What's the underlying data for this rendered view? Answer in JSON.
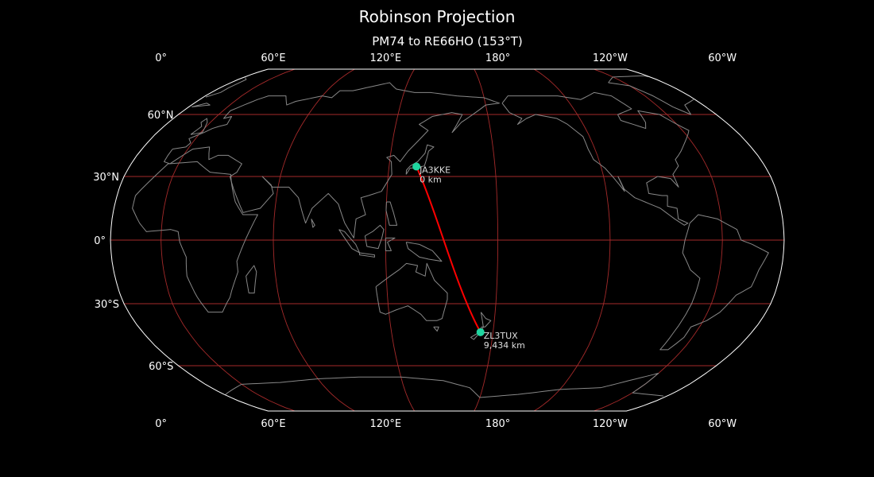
{
  "title": "Robinson Projection",
  "subtitle": "PM74 to RE66HO (153°T)",
  "map": {
    "projection": "Robinson",
    "central_longitude": 153,
    "colors": {
      "background": "#000000",
      "coastline": "#888888",
      "gridline": "#a52a2a",
      "outline": "#ffffff",
      "path": "#ff0000",
      "marker": "#1fd6a0"
    },
    "lon_ticks": [
      {
        "lon": 0,
        "label": "0°"
      },
      {
        "lon": 60,
        "label": "60°E"
      },
      {
        "lon": 120,
        "label": "120°E"
      },
      {
        "lon": 180,
        "label": "180°"
      },
      {
        "lon": -120,
        "label": "120°W"
      },
      {
        "lon": -60,
        "label": "60°W"
      }
    ],
    "lat_ticks": [
      {
        "lat": 60,
        "label": "60°N"
      },
      {
        "lat": 30,
        "label": "30°N"
      },
      {
        "lat": 0,
        "label": "0°"
      },
      {
        "lat": -30,
        "label": "30°S"
      },
      {
        "lat": -60,
        "label": "60°S"
      }
    ],
    "stations": [
      {
        "call": "JA3KKE",
        "distance": "0 km",
        "lon": 135.5,
        "lat": 34.7
      },
      {
        "call": "ZL3TUX",
        "distance": "9,434 km",
        "lon": 172.6,
        "lat": -43.5
      }
    ]
  }
}
